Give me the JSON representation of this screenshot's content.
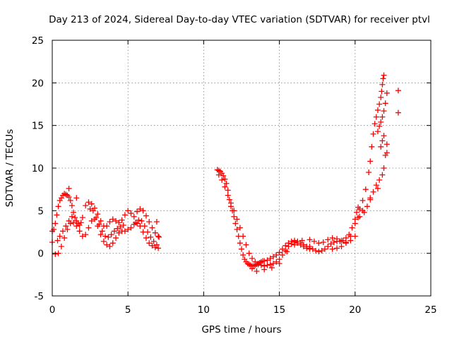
{
  "chart_data": {
    "type": "scatter",
    "title": "Day 213 of 2024, Sidereal Day-to-day VTEC variation (SDTVAR) for receiver ptvl",
    "xlabel": "GPS time / hours",
    "ylabel": "SDTVAR / TECUs",
    "xlim": [
      0,
      25
    ],
    "ylim": [
      -5,
      25
    ],
    "x_ticks": [
      0,
      5,
      10,
      15,
      20,
      25
    ],
    "y_ticks": [
      -5,
      0,
      5,
      10,
      15,
      20,
      25
    ],
    "x_tick_labels": [
      "0",
      "5",
      "10",
      "15",
      "20",
      "25"
    ],
    "y_tick_labels": [
      "-5",
      "0",
      "5",
      "10",
      "15",
      "20",
      "25"
    ],
    "grid": true,
    "marker": "plus",
    "series": [
      {
        "name": "SDTVAR",
        "color": "#ff0000",
        "x": [
          0.0,
          0.1,
          0.2,
          0.3,
          0.4,
          0.5,
          0.6,
          0.7,
          0.8,
          0.9,
          1.0,
          1.1,
          1.2,
          1.3,
          1.4,
          1.5,
          1.6,
          1.7,
          1.8,
          1.9,
          2.0,
          2.2,
          2.4,
          2.6,
          2.8,
          3.0,
          3.2,
          3.4,
          3.6,
          3.8,
          4.0,
          4.2,
          4.4,
          4.6,
          4.8,
          5.0,
          5.2,
          5.4,
          5.6,
          5.8,
          6.0,
          6.2,
          6.4,
          6.6,
          6.8,
          7.0,
          0.2,
          0.4,
          0.6,
          0.8,
          1.0,
          1.2,
          1.4,
          1.6,
          1.8,
          2.0,
          2.2,
          2.4,
          2.6,
          2.8,
          3.0,
          3.2,
          3.4,
          3.6,
          3.8,
          4.0,
          4.2,
          4.4,
          4.6,
          4.8,
          5.0,
          5.2,
          5.4,
          5.6,
          5.8,
          6.0,
          6.2,
          6.4,
          6.6,
          6.8,
          7.0,
          0.35,
          0.5,
          0.7,
          0.9,
          1.1,
          1.3,
          2.5,
          2.7,
          2.9,
          3.1,
          3.3,
          3.5,
          3.7,
          3.9,
          4.1,
          4.3,
          4.5,
          4.7,
          5.5,
          5.7,
          5.9,
          6.1,
          6.3,
          6.5,
          6.7,
          6.9,
          1.1,
          1.6,
          0.0,
          6.9,
          7.05,
          10.9,
          11.0,
          11.1,
          11.2,
          11.3,
          11.4,
          11.5,
          11.6,
          11.7,
          11.8,
          11.9,
          12.0,
          12.1,
          12.2,
          12.3,
          12.4,
          12.5,
          12.6,
          12.7,
          12.8,
          12.9,
          13.0,
          13.1,
          13.2,
          13.3,
          13.4,
          13.5,
          13.6,
          13.7,
          13.8,
          13.9,
          14.0,
          14.2,
          14.4,
          14.6,
          14.8,
          15.0,
          15.2,
          15.4,
          15.6,
          15.8,
          16.0,
          16.2,
          16.4,
          16.6,
          16.8,
          17.0,
          11.0,
          11.2,
          11.4,
          11.6,
          11.8,
          12.0,
          12.2,
          12.4,
          12.6,
          12.8,
          13.0,
          13.2,
          13.4,
          13.6,
          13.8,
          14.0,
          14.2,
          14.4,
          14.6,
          14.8,
          15.0,
          15.2,
          15.4,
          15.6,
          15.8,
          16.0,
          16.2,
          16.4,
          16.6,
          16.8,
          17.0,
          13.2,
          13.5,
          14.0,
          14.5,
          15.0,
          15.5,
          16.0,
          16.5,
          17.0,
          17.2,
          17.4,
          17.6,
          17.8,
          18.0,
          18.2,
          18.4,
          18.6,
          18.8,
          19.0,
          19.2,
          19.4,
          19.6,
          19.8,
          20.0,
          20.1,
          20.2,
          17.0,
          17.3,
          17.6,
          17.9,
          18.2,
          18.5,
          18.8,
          19.1,
          19.4,
          19.7,
          20.0,
          18.5,
          18.8,
          19.1,
          19.4,
          19.7,
          20.0,
          20.2,
          20.3,
          20.5,
          20.7,
          20.9,
          21.0,
          21.1,
          21.2,
          21.3,
          21.4,
          21.5,
          21.6,
          21.7,
          21.75,
          21.8,
          21.85,
          21.9,
          20.6,
          20.8,
          21.0,
          21.2,
          21.4,
          21.6,
          21.8,
          21.9,
          22.0,
          22.1,
          21.5,
          21.6,
          21.7,
          21.8,
          21.9,
          22.0,
          22.1,
          21.7,
          21.8,
          21.9,
          20.5,
          21.0,
          21.5,
          20.3,
          22.85,
          22.85,
          22.1
        ],
        "y": [
          2.6,
          2.8,
          3.5,
          4.5,
          5.5,
          6.2,
          6.5,
          6.8,
          7.0,
          6.9,
          6.8,
          6.6,
          6.2,
          5.6,
          4.8,
          4.2,
          3.8,
          3.5,
          3.3,
          3.6,
          4.2,
          5.6,
          6.0,
          5.8,
          5.3,
          4.6,
          3.8,
          3.2,
          3.2,
          3.7,
          4.0,
          3.8,
          3.6,
          3.9,
          4.5,
          5.0,
          4.7,
          4.3,
          4.9,
          5.2,
          5.0,
          4.4,
          3.7,
          3.0,
          2.4,
          2.0,
          -0.1,
          0.0,
          0.8,
          1.8,
          2.8,
          3.5,
          3.6,
          3.2,
          2.6,
          2.0,
          2.2,
          3.0,
          3.8,
          4.0,
          3.2,
          2.2,
          1.4,
          1.0,
          0.8,
          1.2,
          1.8,
          2.4,
          2.6,
          2.6,
          2.8,
          3.0,
          3.4,
          3.5,
          3.2,
          2.5,
          1.8,
          1.2,
          0.9,
          0.7,
          0.6,
          1.5,
          2.0,
          2.6,
          3.2,
          3.8,
          4.3,
          5.2,
          5.0,
          4.2,
          3.4,
          2.6,
          2.0,
          1.9,
          2.2,
          2.6,
          2.9,
          3.1,
          3.3,
          3.6,
          3.9,
          3.8,
          3.2,
          2.5,
          1.9,
          1.4,
          1.0,
          7.6,
          6.5,
          1.3,
          3.7,
          1.9,
          9.8,
          9.7,
          9.6,
          9.4,
          9.1,
          8.7,
          8.2,
          7.4,
          6.3,
          5.5,
          5.0,
          4.3,
          3.5,
          2.8,
          2.0,
          1.2,
          0.5,
          -0.2,
          -0.7,
          -1.0,
          -1.2,
          -1.3,
          -1.4,
          -1.5,
          -1.5,
          -1.4,
          -1.3,
          -1.2,
          -1.1,
          -1.0,
          -0.9,
          -0.9,
          -0.8,
          -0.6,
          -0.4,
          -0.2,
          0.1,
          0.5,
          0.9,
          1.2,
          1.4,
          1.5,
          1.4,
          1.2,
          1.0,
          0.8,
          0.6,
          9.2,
          8.6,
          7.8,
          6.8,
          5.9,
          5.0,
          4.0,
          3.0,
          2.0,
          1.0,
          0.0,
          -0.6,
          -1.0,
          -1.3,
          -1.4,
          -1.5,
          -1.4,
          -1.3,
          -1.2,
          -1.0,
          -0.7,
          -0.2,
          0.3,
          0.8,
          1.1,
          1.3,
          1.2,
          1.0,
          0.8,
          0.6,
          0.5,
          -1.8,
          -2.1,
          -1.9,
          -1.7,
          -1.2,
          0.2,
          1.0,
          1.5,
          0.8,
          0.5,
          0.3,
          0.2,
          0.3,
          0.5,
          0.8,
          1.1,
          1.3,
          1.4,
          1.4,
          1.5,
          1.8,
          2.2,
          3.0,
          4.0,
          4.8,
          5.4,
          1.6,
          1.4,
          1.2,
          1.3,
          1.6,
          1.8,
          1.7,
          1.5,
          1.3,
          1.5,
          2.0,
          0.5,
          0.6,
          0.8,
          1.2,
          2.0,
          3.5,
          4.2,
          5.2,
          6.2,
          7.5,
          9.5,
          10.8,
          12.5,
          14.0,
          15.2,
          16.0,
          16.8,
          17.5,
          18.3,
          19.0,
          19.8,
          20.5,
          20.9,
          4.8,
          5.5,
          6.3,
          7.2,
          8.0,
          8.6,
          9.2,
          10.0,
          11.5,
          12.8,
          14.3,
          14.9,
          15.4,
          16.0,
          16.7,
          17.6,
          18.8,
          12.5,
          13.2,
          13.8,
          5.0,
          6.5,
          7.6,
          4.3,
          19.1,
          16.5,
          11.8
        ]
      }
    ]
  }
}
